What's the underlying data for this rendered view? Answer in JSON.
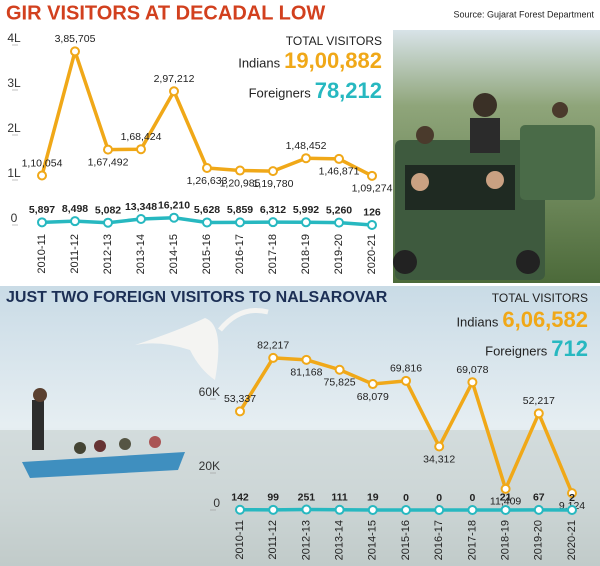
{
  "chart_data": [
    {
      "type": "line",
      "title": "GIR VISITORS AT DECADAL LOW",
      "source": "Source: Gujarat Forest Department",
      "categories": [
        "2010-11",
        "2011-12",
        "2012-13",
        "2013-14",
        "2014-15",
        "2015-16",
        "2016-17",
        "2017-18",
        "2018-19",
        "2019-20",
        "2020-21"
      ],
      "series": [
        {
          "name": "Indians",
          "color": "#f0a818",
          "values": [
            110054,
            385705,
            167492,
            168424,
            297212,
            126633,
            120985,
            119780,
            148452,
            146871,
            109274
          ],
          "value_labels": [
            "1,10,054",
            "3,85,705",
            "1,67,492",
            "1,68,424",
            "2,97,212",
            "1,26,633",
            "1,20,985",
            "1,19,780",
            "1,48,452",
            "1,46,871",
            "1,09,274"
          ],
          "total": {
            "value": 1900882,
            "label": "19,00,882"
          }
        },
        {
          "name": "Foreigners",
          "color": "#27b8c0",
          "values": [
            5897,
            8498,
            5082,
            13348,
            16210,
            5628,
            5859,
            6312,
            5992,
            5260,
            126
          ],
          "value_labels": [
            "5,897",
            "8,498",
            "5,082",
            "13,348",
            "16,210",
            "5,628",
            "5,859",
            "6,312",
            "5,992",
            "5,260",
            "126"
          ],
          "total": {
            "value": 78212,
            "label": "78,212"
          }
        }
      ],
      "totals_heading": "TOTAL VISITORS",
      "ylim": [
        0,
        400000
      ],
      "yticks": [
        0,
        {
          "value": 100000,
          "label": "1L"
        },
        {
          "value": 200000,
          "label": "2L"
        },
        {
          "value": 300000,
          "label": "3L"
        },
        {
          "value": 400000,
          "label": "4L"
        }
      ],
      "grid": false
    },
    {
      "type": "line",
      "title": "JUST TWO FOREIGN VISITORS TO NALSAROVAR",
      "categories": [
        "2010-11",
        "2011-12",
        "2012-13",
        "2013-14",
        "2014-15",
        "2015-16",
        "2016-17",
        "2017-18",
        "2018-19",
        "2019-20",
        "2020-21"
      ],
      "series": [
        {
          "name": "Indians",
          "color": "#f0a818",
          "values": [
            53337,
            82217,
            81168,
            75825,
            68079,
            69816,
            34312,
            69078,
            11409,
            52217,
            9124
          ],
          "value_labels": [
            "53,337",
            "82,217",
            "81,168",
            "75,825",
            "68,079",
            "69,816",
            "34,312",
            "69,078",
            "11,409",
            "52,217",
            "9,124"
          ],
          "total": {
            "value": 606582,
            "label": "6,06,582"
          }
        },
        {
          "name": "Foreigners",
          "color": "#27b8c0",
          "values": [
            142,
            99,
            251,
            111,
            19,
            0,
            0,
            0,
            21,
            67,
            2
          ],
          "total": {
            "value": 712,
            "label": "712"
          }
        }
      ],
      "totals_heading": "TOTAL VISITORS",
      "ylim": [
        0,
        90000
      ],
      "yticks": [
        0,
        {
          "value": 20000,
          "label": "20K"
        },
        {
          "value": 60000,
          "label": "60K"
        }
      ],
      "grid": false
    }
  ]
}
